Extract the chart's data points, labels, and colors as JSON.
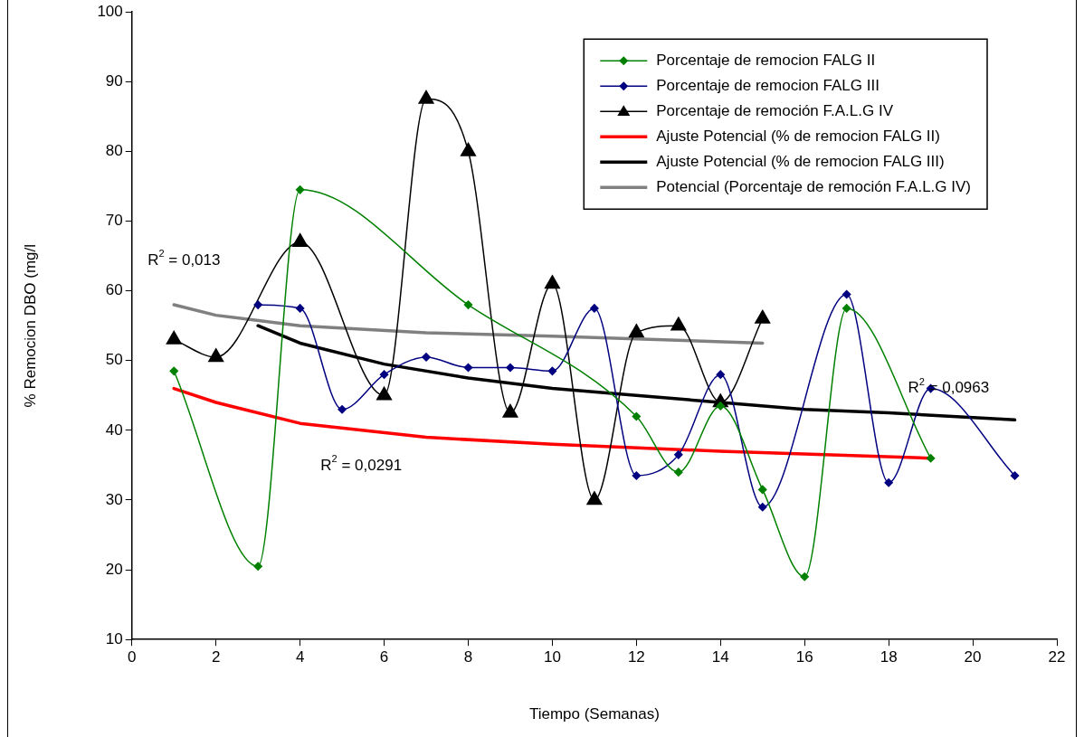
{
  "chart_data": {
    "type": "line",
    "xlabel": "Tiempo (Semanas)",
    "ylabel": "% Remocion DBO (mg/l",
    "xlim": [
      0,
      22
    ],
    "xticks": [
      0,
      2,
      4,
      6,
      8,
      10,
      12,
      14,
      16,
      18,
      20,
      22
    ],
    "ylim": [
      10,
      100
    ],
    "yticks": [
      10,
      20,
      30,
      40,
      50,
      60,
      70,
      80,
      90,
      100
    ],
    "grid": false,
    "legend": "top right",
    "line_style": "solid",
    "series": [
      {
        "name": "Porcentaje de remocion FALG II",
        "color": "#008000",
        "marker": "diamond",
        "x": [
          1,
          3,
          4,
          8,
          12,
          13,
          14,
          15,
          16,
          17,
          19
        ],
        "values": [
          48.5,
          20.5,
          74.5,
          58,
          42,
          34,
          43.5,
          31.5,
          19,
          57.5,
          36
        ]
      },
      {
        "name": "Porcentaje de remocion FALG III",
        "color": "#000080",
        "marker": "diamond",
        "x": [
          3,
          4,
          5,
          6,
          7,
          8,
          9,
          10,
          11,
          12,
          13,
          14,
          15,
          17,
          18,
          19,
          20,
          21
        ],
        "values": [
          58,
          57.5,
          43,
          48,
          50.5,
          49,
          49,
          48.5,
          57.5,
          33.5,
          36.5,
          48,
          29,
          59.5,
          32.5,
          46,
          null,
          33.5
        ]
      },
      {
        "name": "Porcentaje de remoción F.A.L.G IV",
        "color": "#000000",
        "marker": "triangle",
        "x": [
          1,
          2,
          4,
          6,
          7,
          8,
          9,
          10,
          11,
          12,
          13,
          14,
          15
        ],
        "values": [
          53,
          50.5,
          67,
          45,
          87.5,
          80,
          42.5,
          61,
          30,
          54,
          55,
          44,
          56
        ]
      },
      {
        "name": "Ajuste Potencial (% de remocion FALG II)",
        "color": "#ff0000",
        "type": "line",
        "marker": "none",
        "x": [
          1,
          2,
          4,
          7,
          10,
          14,
          19
        ],
        "values": [
          46,
          44,
          41,
          39,
          38,
          37,
          36
        ]
      },
      {
        "name": "Ajuste Potencial (% de remocion FALG III)",
        "color": "#000000",
        "type": "line",
        "marker": "none",
        "x": [
          3,
          4,
          6,
          8,
          10,
          12,
          14,
          16,
          18,
          21
        ],
        "values": [
          55,
          52.5,
          49.5,
          47.5,
          46,
          45,
          44,
          43,
          42.5,
          41.5
        ]
      },
      {
        "name": "Potencial (Porcentaje de remoción F.A.L.G IV)",
        "color": "#808080",
        "type": "line",
        "marker": "none",
        "x": [
          1,
          2,
          4,
          7,
          10,
          15
        ],
        "values": [
          58,
          56.5,
          55,
          54,
          53.5,
          52.5
        ]
      }
    ],
    "annotations": [
      "R$^{2}$ = 0,013",
      "R$^{2}$ = 0,0291",
      "R$^{2}$ = 0,0963"
    ]
  }
}
